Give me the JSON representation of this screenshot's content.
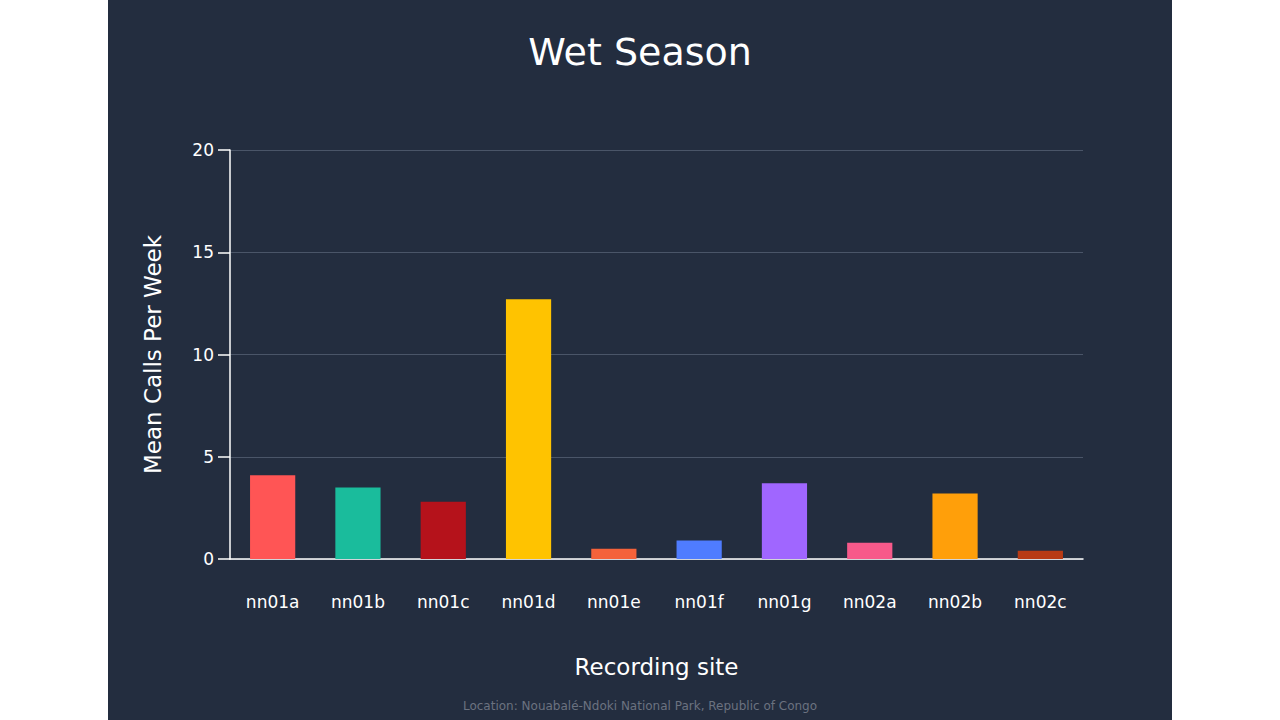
{
  "chart_data": {
    "type": "bar",
    "title": "Wet Season",
    "x_label": "Recording site",
    "y_label": "Mean Calls Per Week",
    "annotation": "Location: Nouabalé-Ndoki National Park, Republic of Congo",
    "categories": [
      "nn01a",
      "nn01b",
      "nn01c",
      "nn01d",
      "nn01e",
      "nn01f",
      "nn01g",
      "nn02a",
      "nn02b",
      "nn02c"
    ],
    "values": [
      4.1,
      3.5,
      2.8,
      12.7,
      0.5,
      0.9,
      3.7,
      0.8,
      3.2,
      0.4
    ],
    "colors": [
      "#ff5555",
      "#1abc9c",
      "#b5121b",
      "#ffc300",
      "#f4623a",
      "#4f7cff",
      "#a066ff",
      "#f7598a",
      "#ff9f0a",
      "#b83a14"
    ],
    "ylim": [
      0,
      20
    ],
    "yticks": [
      0,
      5,
      10,
      15,
      20
    ],
    "grid": true
  }
}
